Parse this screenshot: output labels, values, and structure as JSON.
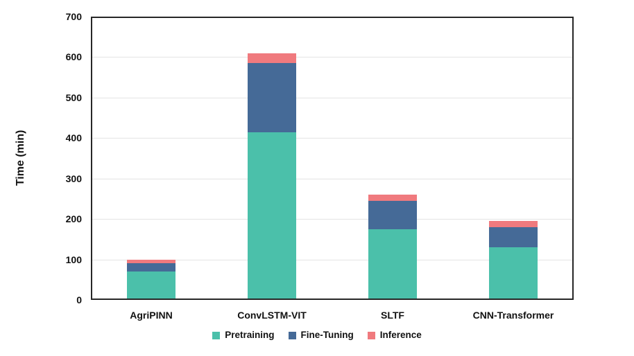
{
  "chart_data": {
    "type": "bar",
    "stacked": true,
    "title": "",
    "xlabel": "",
    "ylabel": "Time (min)",
    "ylim": [
      0,
      700
    ],
    "yticks": [
      0,
      100,
      200,
      300,
      400,
      500,
      600,
      700
    ],
    "grid": true,
    "legend_position": "bottom",
    "categories": [
      "AgriPINN",
      "ConvLSTM-VIT",
      "SLTF",
      "CNN-Transformer"
    ],
    "series": [
      {
        "name": "Pretraining",
        "color": "#4BC0AA",
        "values": [
          70,
          415,
          175,
          130
        ]
      },
      {
        "name": "Fine-Tuning",
        "color": "#456A97",
        "values": [
          20,
          170,
          70,
          50
        ]
      },
      {
        "name": "Inference",
        "color": "#F07A7E",
        "values": [
          10,
          25,
          15,
          15
        ]
      }
    ],
    "totals": [
      100,
      610,
      260,
      195
    ]
  },
  "style_colors": {
    "gridline": "#e4e4e4",
    "plot_border": "#262626",
    "text": "#111111",
    "background": "#ffffff"
  }
}
